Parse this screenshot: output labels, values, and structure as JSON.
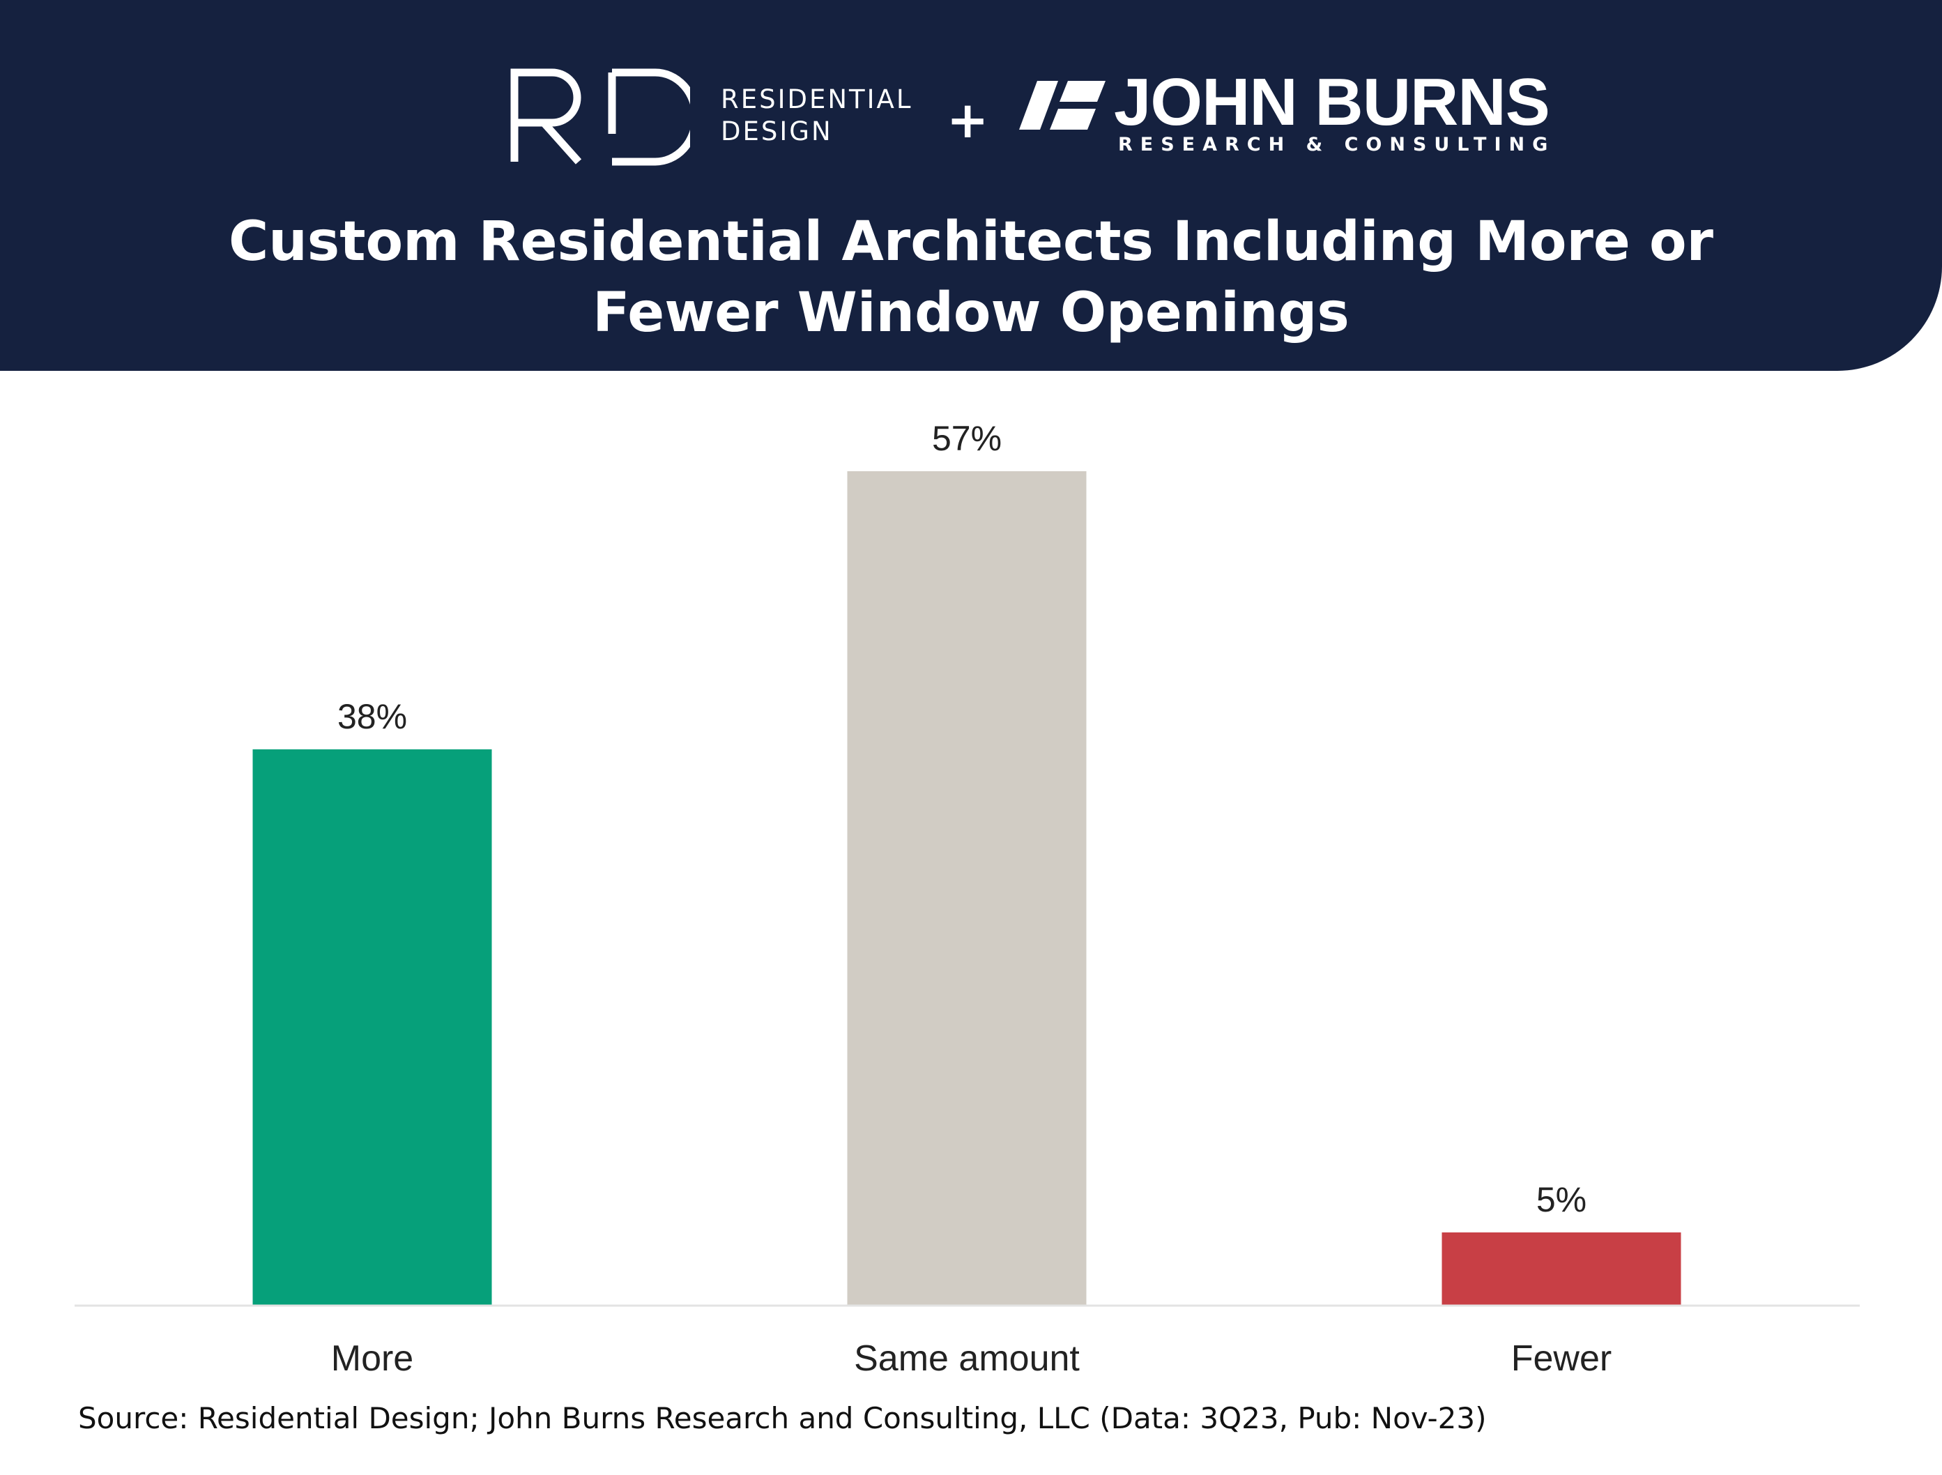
{
  "brand": {
    "rd_line1": "RESIDENTIAL",
    "rd_line2": "DESIGN",
    "plus": "+",
    "jb_name": "JOHN BURNS",
    "jb_sub": "RESEARCH & CONSULTING"
  },
  "colors": {
    "header_bg": "#15213f",
    "more": "#06a07a",
    "same": "#d1ccc4",
    "fewer": "#c83f45"
  },
  "chart_data": {
    "type": "bar",
    "title_line1": "Custom Residential Architects Including More or",
    "title_line2": "Fewer Window Openings",
    "categories": [
      "More",
      "Same amount",
      "Fewer"
    ],
    "values": [
      38,
      57,
      5
    ],
    "value_labels": [
      "38%",
      "57%",
      "5%"
    ],
    "colors": [
      "#06a07a",
      "#d1ccc4",
      "#c83f45"
    ],
    "ylim": [
      0,
      57
    ],
    "grid": false,
    "legend": "none"
  },
  "source": "Source: Residential Design; John Burns Research and Consulting, LLC (Data: 3Q23, Pub: Nov-23)"
}
